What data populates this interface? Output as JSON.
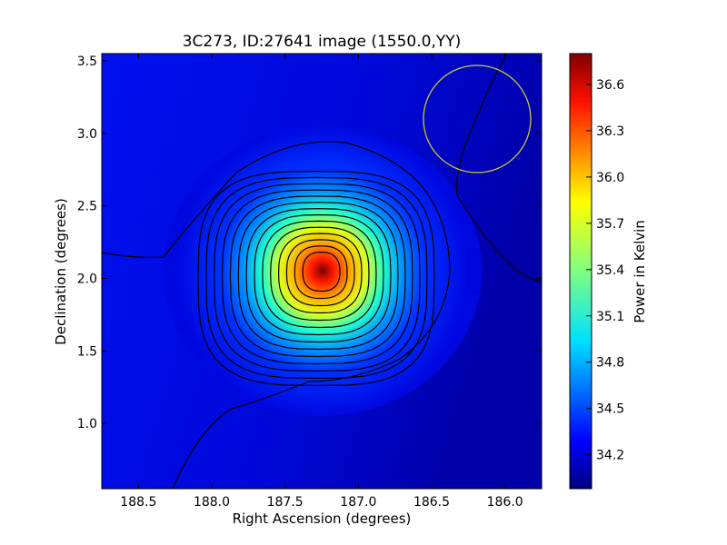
{
  "chart_data": {
    "type": "heatmap",
    "title": "3C273, ID:27641 image (1550.0,YY)",
    "xlabel": "Right Ascension (degrees)",
    "ylabel": "Declination (degrees)",
    "xlim": [
      188.75,
      185.75
    ],
    "ylim": [
      0.55,
      3.55
    ],
    "x_inverted": true,
    "x_ticks": [
      "188.5",
      "188.0",
      "187.5",
      "187.0",
      "186.5",
      "186.0"
    ],
    "y_ticks": [
      "1.0",
      "1.5",
      "2.0",
      "2.5",
      "3.0",
      "3.5"
    ],
    "colormap": "jet",
    "colorbar": {
      "label": "Power in Kelvin",
      "range": [
        33.98,
        36.8
      ],
      "ticks": [
        "34.2",
        "34.5",
        "34.8",
        "35.1",
        "35.4",
        "35.7",
        "36.0",
        "36.3",
        "36.6"
      ]
    },
    "peak": {
      "ra": 187.25,
      "dec": 2.05,
      "value": 36.8
    },
    "background_level": 34.1,
    "contour_count": 14,
    "contour_color": "#000000",
    "beam_marker": {
      "shape": "circle",
      "ra_center": 186.22,
      "dec_center": 3.11,
      "radius_deg": 0.37,
      "color": "#cccc33"
    },
    "grid": false
  }
}
